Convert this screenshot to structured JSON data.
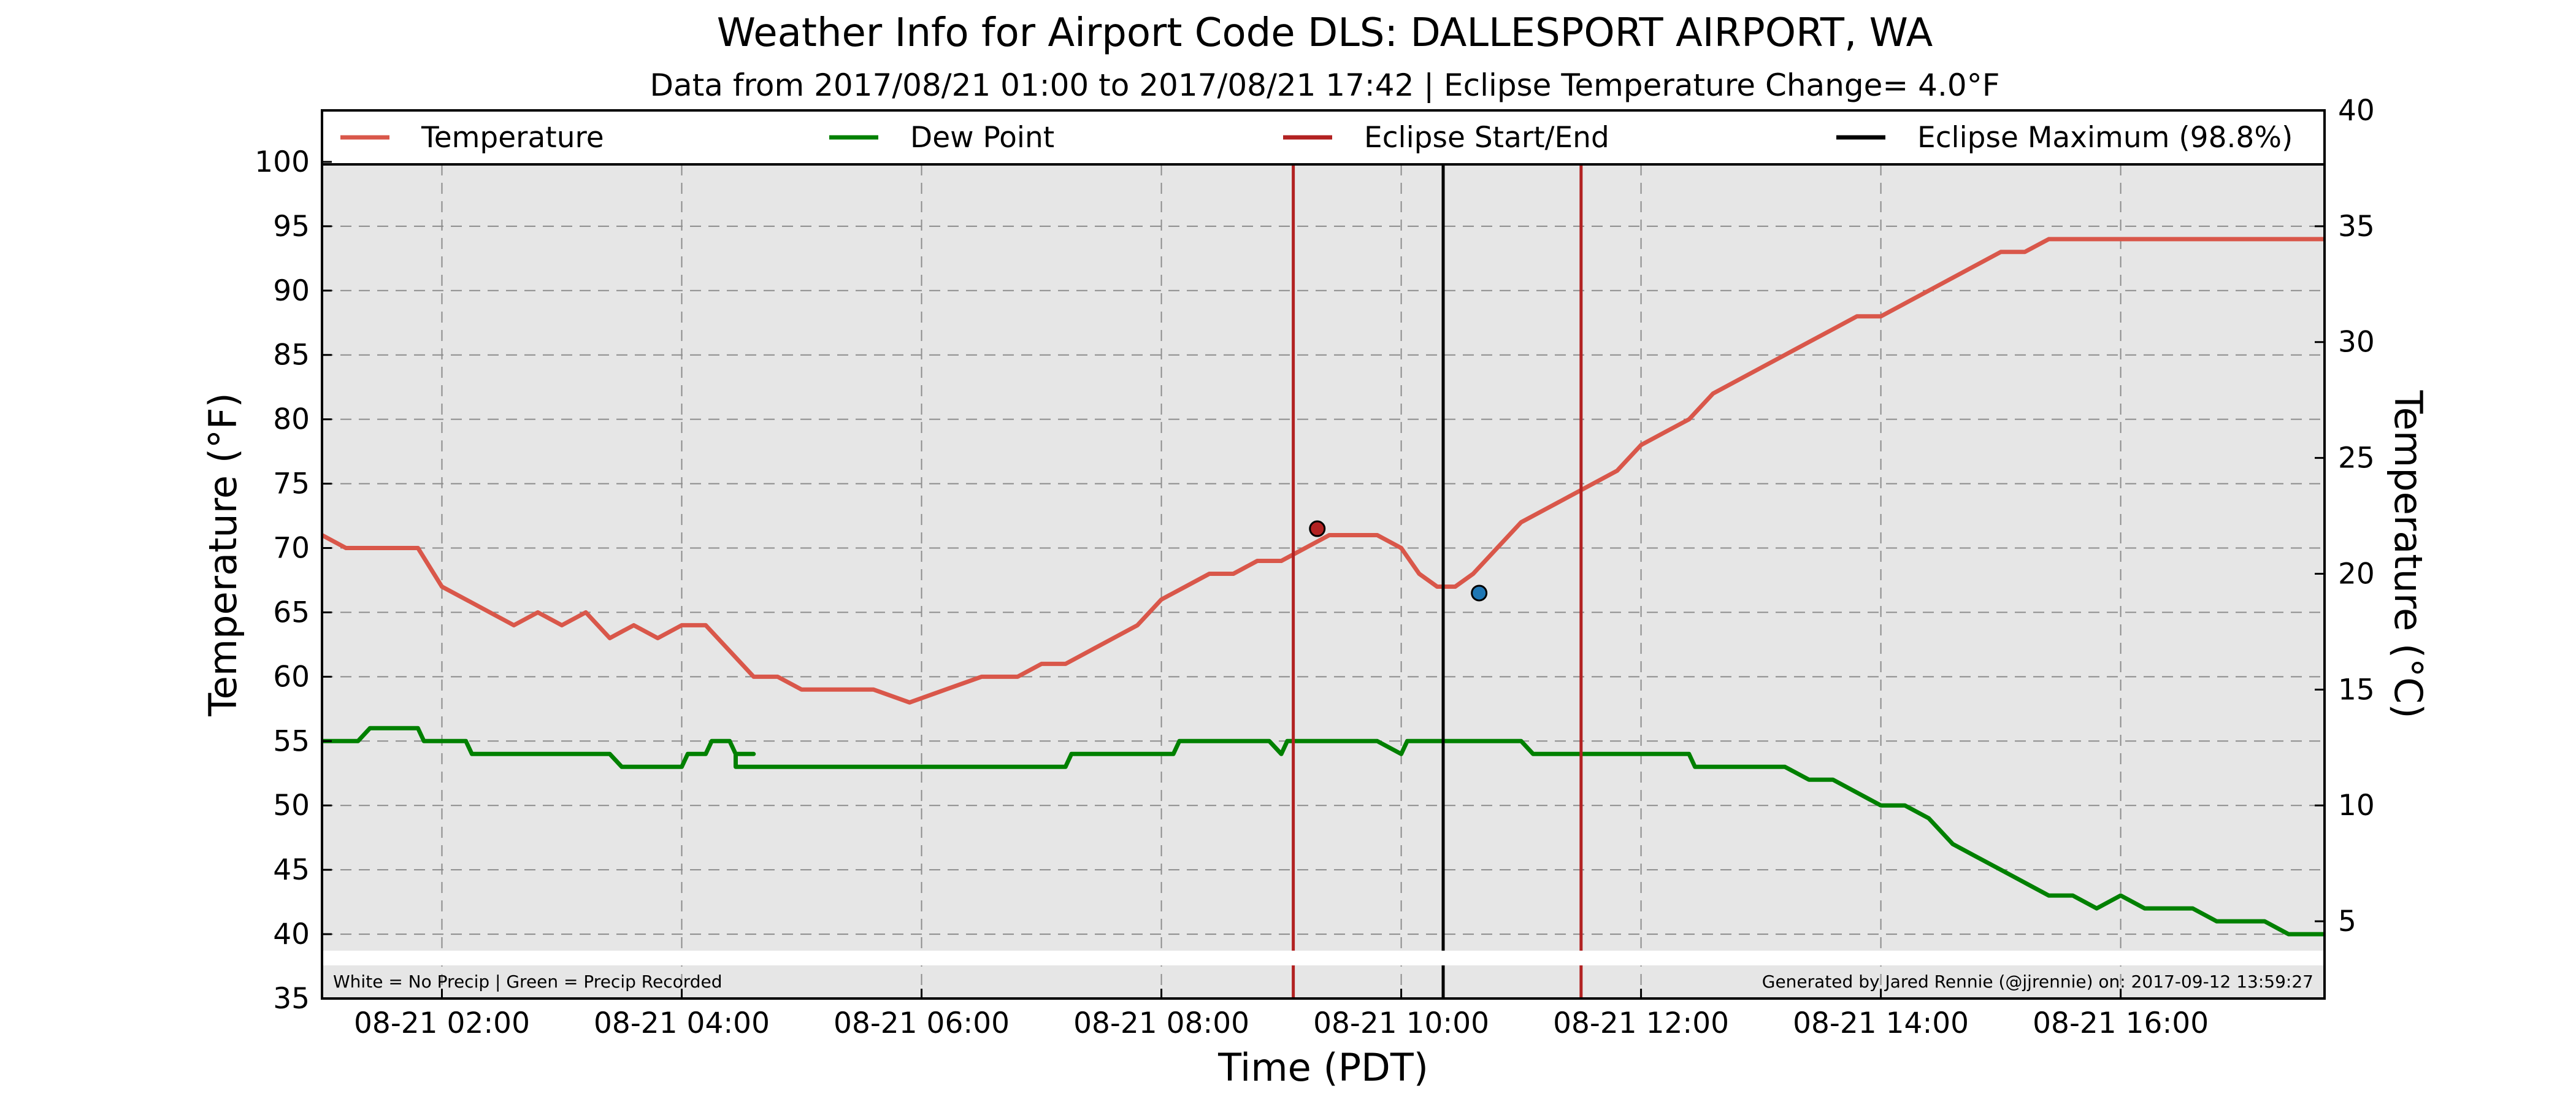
{
  "chart_data": {
    "type": "line",
    "title": "Weather Info for Airport Code DLS: DALLESPORT AIRPORT, WA",
    "subtitle": "Data from 2017/08/21 01:00 to 2017/08/21 17:42 | Eclipse Temperature Change= 4.0°F",
    "xlabel": "Time (PDT)",
    "ylabel": "Temperature (°F)",
    "ylabel_right": "Temperature (°C)",
    "x_range_hours": [
      1.0,
      17.7
    ],
    "ylim": [
      35,
      104
    ],
    "y_ticks": [
      35,
      40,
      45,
      50,
      55,
      60,
      65,
      70,
      75,
      80,
      85,
      90,
      95,
      100
    ],
    "y_ticks_right": [
      5,
      10,
      15,
      20,
      25,
      30,
      35,
      40
    ],
    "x_ticks": [
      {
        "hour": 2,
        "label": "08-21 02:00"
      },
      {
        "hour": 4,
        "label": "08-21 04:00"
      },
      {
        "hour": 6,
        "label": "08-21 06:00"
      },
      {
        "hour": 8,
        "label": "08-21 08:00"
      },
      {
        "hour": 10,
        "label": "08-21 10:00"
      },
      {
        "hour": 12,
        "label": "08-21 12:00"
      },
      {
        "hour": 14,
        "label": "08-21 14:00"
      },
      {
        "hour": 16,
        "label": "08-21 16:00"
      }
    ],
    "grid": true,
    "legend_position": "top",
    "legend": [
      {
        "label": "Temperature",
        "color": "#d9574a"
      },
      {
        "label": "Dew Point",
        "color": "#008000"
      },
      {
        "label": "Eclipse Start/End",
        "color": "#b22222"
      },
      {
        "label": "Eclipse Maximum (98.8%)",
        "color": "#000000"
      }
    ],
    "series": [
      {
        "name": "Temperature",
        "color": "#d9574a",
        "points": [
          [
            1.0,
            71
          ],
          [
            1.2,
            70
          ],
          [
            1.6,
            70
          ],
          [
            1.8,
            70
          ],
          [
            2.0,
            67
          ],
          [
            2.2,
            66
          ],
          [
            2.4,
            65
          ],
          [
            2.6,
            64
          ],
          [
            2.8,
            65
          ],
          [
            3.0,
            64
          ],
          [
            3.2,
            65
          ],
          [
            3.4,
            63
          ],
          [
            3.6,
            64
          ],
          [
            3.8,
            63
          ],
          [
            4.0,
            64
          ],
          [
            4.2,
            64
          ],
          [
            4.4,
            62
          ],
          [
            4.6,
            60
          ],
          [
            4.8,
            60
          ],
          [
            5.0,
            59
          ],
          [
            5.3,
            59
          ],
          [
            5.6,
            59
          ],
          [
            5.9,
            58
          ],
          [
            6.2,
            59
          ],
          [
            6.5,
            60
          ],
          [
            6.8,
            60
          ],
          [
            7.0,
            61
          ],
          [
            7.2,
            61
          ],
          [
            7.4,
            62
          ],
          [
            7.6,
            63
          ],
          [
            7.8,
            64
          ],
          [
            8.0,
            66
          ],
          [
            8.2,
            67
          ],
          [
            8.4,
            68
          ],
          [
            8.6,
            68
          ],
          [
            8.8,
            69
          ],
          [
            9.0,
            69
          ],
          [
            9.2,
            70
          ],
          [
            9.4,
            71
          ],
          [
            9.6,
            71
          ],
          [
            9.8,
            71
          ],
          [
            10.0,
            70
          ],
          [
            10.15,
            68
          ],
          [
            10.3,
            67
          ],
          [
            10.45,
            67
          ],
          [
            10.6,
            68
          ],
          [
            10.8,
            70
          ],
          [
            11.0,
            72
          ],
          [
            11.2,
            73
          ],
          [
            11.4,
            74
          ],
          [
            11.6,
            75
          ],
          [
            11.8,
            76
          ],
          [
            12.0,
            78
          ],
          [
            12.2,
            79
          ],
          [
            12.4,
            80
          ],
          [
            12.6,
            82
          ],
          [
            12.8,
            83
          ],
          [
            13.0,
            84
          ],
          [
            13.2,
            85
          ],
          [
            13.4,
            86
          ],
          [
            13.6,
            87
          ],
          [
            13.8,
            88
          ],
          [
            14.0,
            88
          ],
          [
            14.2,
            89
          ],
          [
            14.4,
            90
          ],
          [
            14.6,
            91
          ],
          [
            14.8,
            92
          ],
          [
            15.0,
            93
          ],
          [
            15.2,
            93
          ],
          [
            15.4,
            94
          ],
          [
            15.6,
            94
          ],
          [
            15.8,
            94
          ],
          [
            16.0,
            94
          ],
          [
            16.3,
            94
          ],
          [
            16.6,
            94
          ],
          [
            16.9,
            94
          ],
          [
            17.2,
            94
          ],
          [
            17.5,
            94
          ],
          [
            17.7,
            94
          ]
        ]
      },
      {
        "name": "Dew Point",
        "color": "#008000",
        "points": [
          [
            1.0,
            55
          ],
          [
            1.3,
            55
          ],
          [
            1.4,
            56
          ],
          [
            1.8,
            56
          ],
          [
            1.85,
            55
          ],
          [
            2.2,
            55
          ],
          [
            2.25,
            54
          ],
          [
            3.0,
            54
          ],
          [
            3.2,
            54
          ],
          [
            3.4,
            54
          ],
          [
            3.5,
            53
          ],
          [
            4.0,
            53
          ],
          [
            4.05,
            54
          ],
          [
            4.2,
            54
          ],
          [
            4.25,
            55
          ],
          [
            4.4,
            55
          ],
          [
            4.45,
            54
          ],
          [
            4.6,
            54
          ],
          [
            4.45,
            54
          ],
          [
            4.45,
            53
          ],
          [
            5.0,
            53
          ],
          [
            6.0,
            53
          ],
          [
            6.6,
            53
          ],
          [
            7.0,
            53
          ],
          [
            7.2,
            53
          ],
          [
            7.25,
            54
          ],
          [
            8.0,
            54
          ],
          [
            8.1,
            54
          ],
          [
            8.15,
            55
          ],
          [
            8.9,
            55
          ],
          [
            9.0,
            54
          ],
          [
            9.05,
            55
          ],
          [
            9.4,
            55
          ],
          [
            9.8,
            55
          ],
          [
            10.0,
            54
          ],
          [
            10.05,
            55
          ],
          [
            10.5,
            55
          ],
          [
            10.8,
            55
          ],
          [
            11.0,
            55
          ],
          [
            11.1,
            54
          ],
          [
            11.5,
            54
          ],
          [
            12.0,
            54
          ],
          [
            12.2,
            54
          ],
          [
            12.4,
            54
          ],
          [
            12.45,
            53
          ],
          [
            13.0,
            53
          ],
          [
            13.2,
            53
          ],
          [
            13.4,
            52
          ],
          [
            13.6,
            52
          ],
          [
            13.8,
            51
          ],
          [
            14.0,
            50
          ],
          [
            14.2,
            50
          ],
          [
            14.4,
            49
          ],
          [
            14.6,
            47
          ],
          [
            14.8,
            46
          ],
          [
            15.0,
            45
          ],
          [
            15.2,
            44
          ],
          [
            15.4,
            43
          ],
          [
            15.6,
            43
          ],
          [
            15.8,
            42
          ],
          [
            16.0,
            43
          ],
          [
            16.2,
            42
          ],
          [
            16.4,
            42
          ],
          [
            16.6,
            42
          ],
          [
            16.8,
            41
          ],
          [
            17.0,
            41
          ],
          [
            17.2,
            41
          ],
          [
            17.4,
            40
          ],
          [
            17.7,
            40
          ]
        ]
      }
    ],
    "eclipse_start_hour": 9.1,
    "eclipse_end_hour": 11.5,
    "eclipse_max_hour": 10.35,
    "markers": [
      {
        "hour": 9.3,
        "value": 71.5,
        "color": "#b22222"
      },
      {
        "hour": 10.65,
        "value": 66.5,
        "color": "#1f77b4"
      }
    ],
    "precip_band_label": "White = No Precip | Green = Precip Recorded",
    "credit": "Generated by Jared Rennie (@jjrennie) on: 2017-09-12 13:59:27"
  }
}
